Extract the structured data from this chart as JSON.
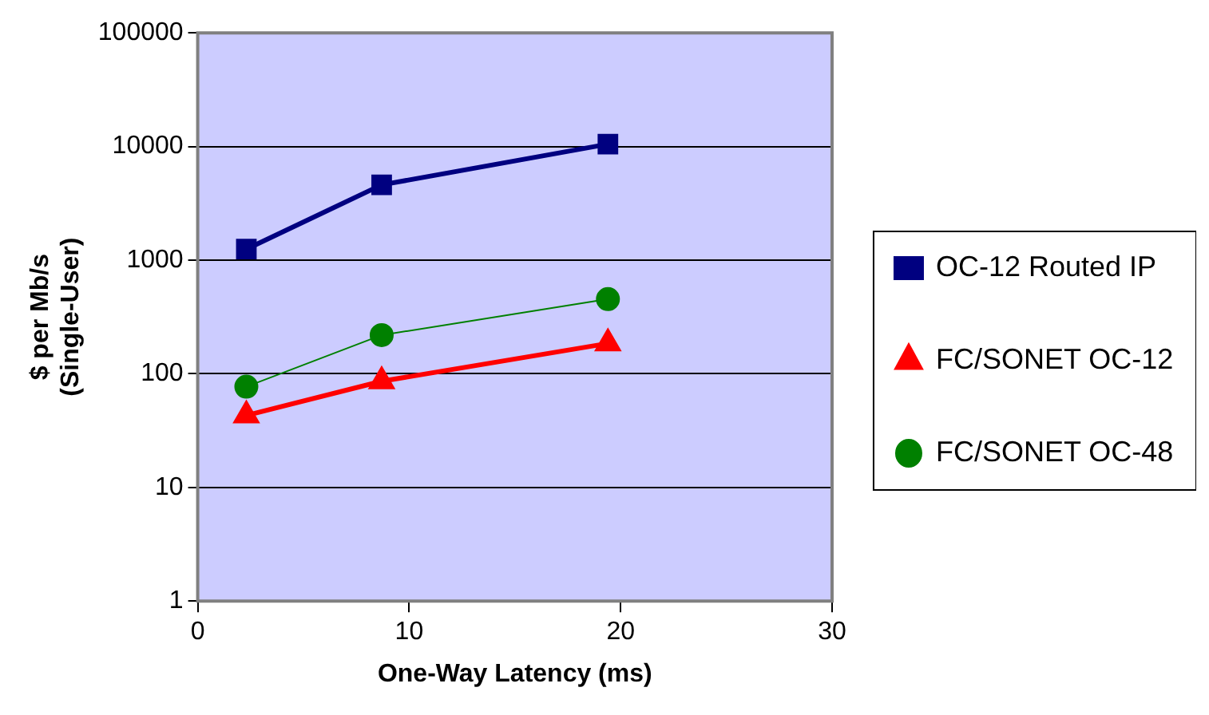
{
  "chart_data": {
    "type": "line",
    "xlabel": "One-Way Latency (ms)",
    "ylabel": "$ per Mb/s\n(Single-User)",
    "xlim": [
      0,
      30
    ],
    "xticks": [
      0,
      10,
      20,
      30
    ],
    "ylim": [
      1,
      100000
    ],
    "yticks": [
      1,
      10,
      100,
      1000,
      10000,
      100000
    ],
    "log": "y",
    "grid": "y",
    "legend": "right",
    "series": [
      {
        "name": "OC-12 Routed IP",
        "color": "#000080",
        "marker": "square",
        "x": [
          2.3,
          8.7,
          19.4
        ],
        "values": [
          1250,
          4600,
          10500
        ]
      },
      {
        "name": "FC/SONET OC-12",
        "color": "#ff0000",
        "marker": "triangle",
        "x": [
          2.3,
          8.7,
          19.4
        ],
        "values": [
          43,
          86,
          185
        ]
      },
      {
        "name": "FC/SONET OC-48",
        "color": "#008000",
        "marker": "circle",
        "x": [
          2.3,
          8.7,
          19.4
        ],
        "values": [
          77,
          219,
          454
        ]
      }
    ]
  }
}
